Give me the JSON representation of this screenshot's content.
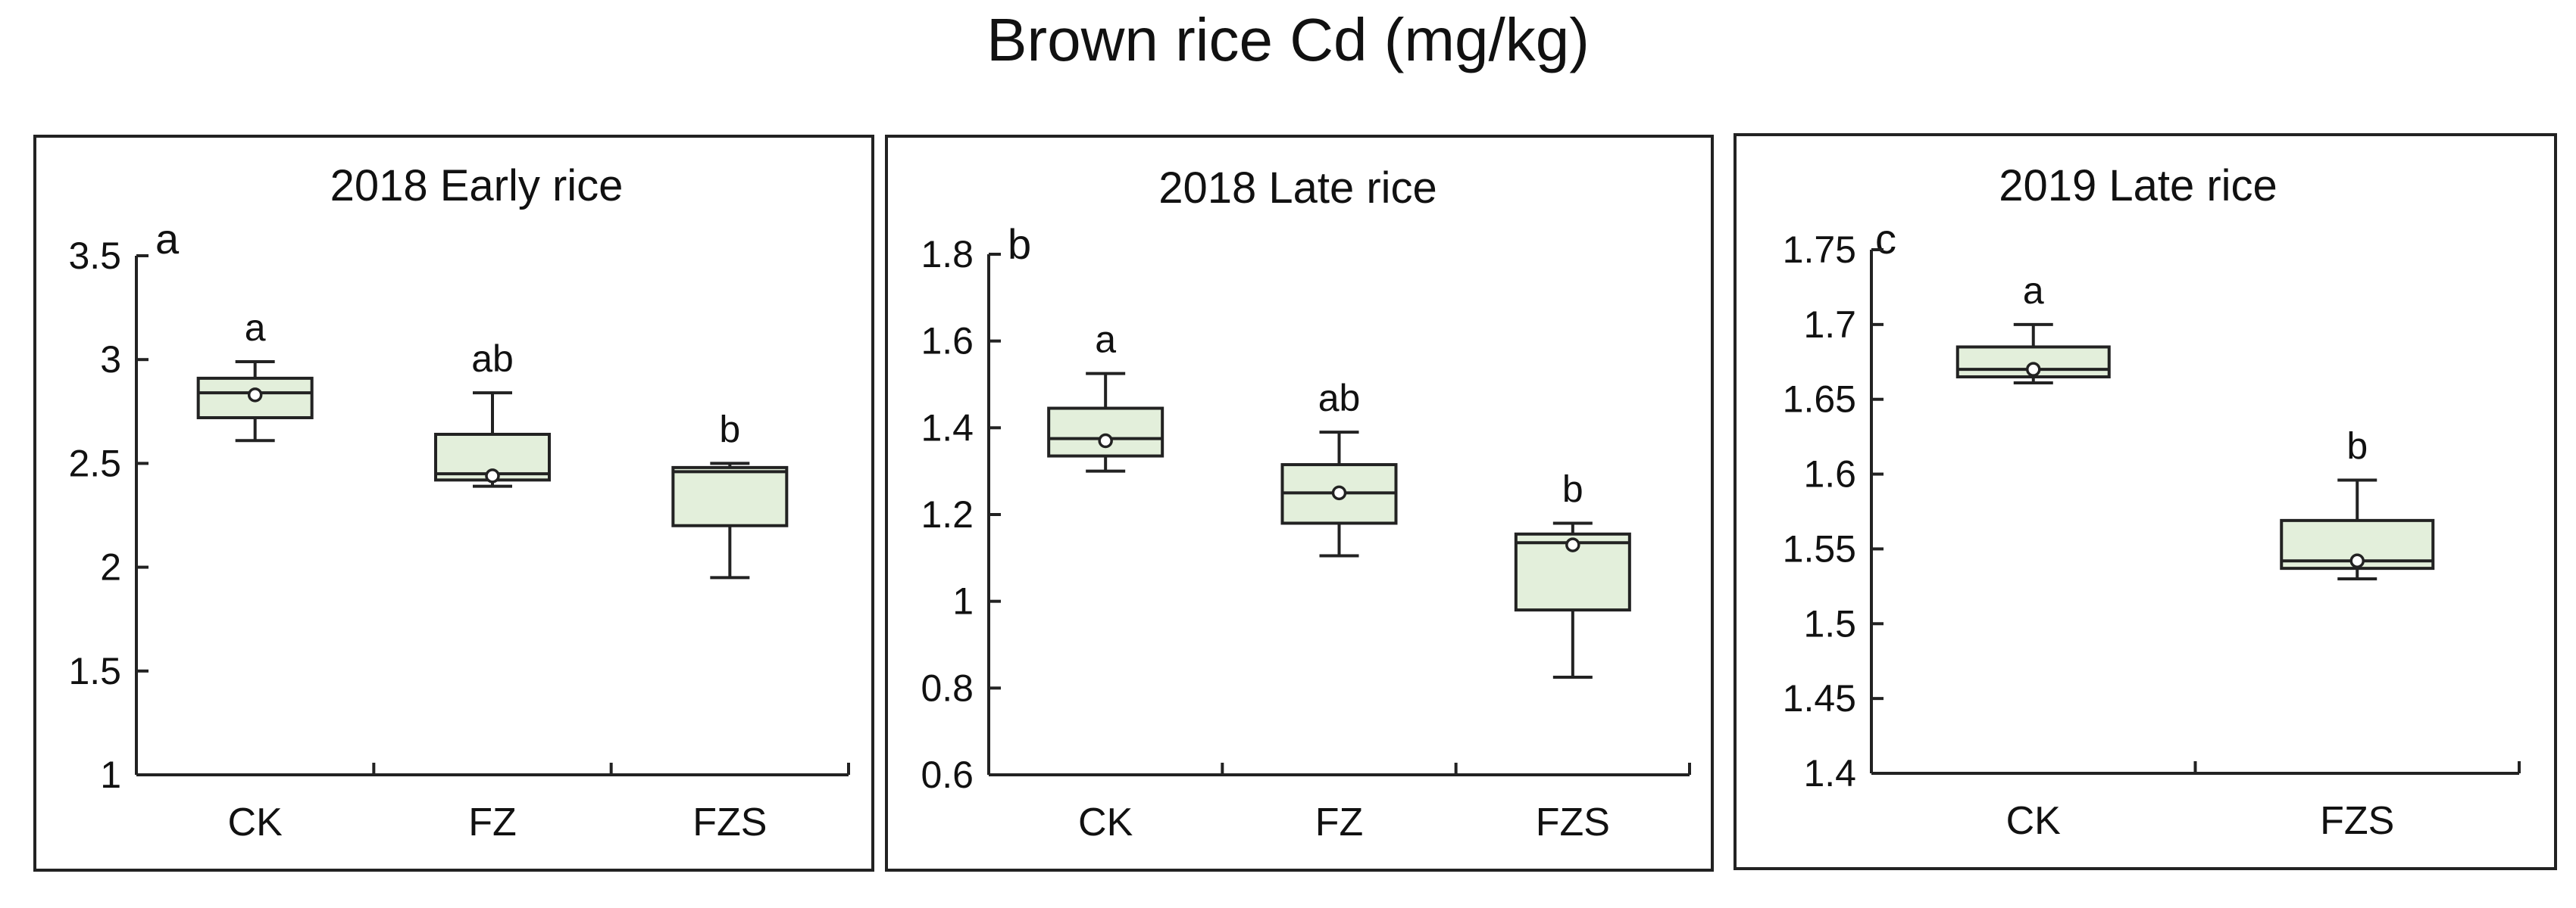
{
  "figure_title": "Brown rice Cd (mg/kg)",
  "chart_data": [
    {
      "type": "box",
      "panel_letter": "a",
      "title": "2018 Early rice",
      "xlabel": "",
      "ylabel": "",
      "ylim": [
        1,
        3.5
      ],
      "yticks": [
        "1",
        "1.5",
        "2",
        "2.5",
        "3",
        "3.5"
      ],
      "categories": [
        "CK",
        "FZ",
        "FZS"
      ],
      "boxes": [
        {
          "min": 2.61,
          "q1": 2.72,
          "median": 2.84,
          "q3": 2.91,
          "max": 2.99,
          "mean": 2.83,
          "sig": "a"
        },
        {
          "min": 2.39,
          "q1": 2.42,
          "median": 2.45,
          "q3": 2.64,
          "max": 2.84,
          "mean": 2.44,
          "sig": "ab"
        },
        {
          "min": 1.95,
          "q1": 2.2,
          "median": 2.46,
          "q3": 2.48,
          "max": 2.5,
          "mean": null,
          "sig": "b"
        }
      ]
    },
    {
      "type": "box",
      "panel_letter": "b",
      "title": "2018 Late rice",
      "xlabel": "",
      "ylabel": "",
      "ylim": [
        0.6,
        1.8
      ],
      "yticks": [
        "0.6",
        "0.8",
        "1",
        "1.2",
        "1.4",
        "1.6",
        "1.8"
      ],
      "categories": [
        "CK",
        "FZ",
        "FZS"
      ],
      "boxes": [
        {
          "min": 1.3,
          "q1": 1.335,
          "median": 1.375,
          "q3": 1.445,
          "max": 1.525,
          "mean": 1.37,
          "sig": "a"
        },
        {
          "min": 1.105,
          "q1": 1.18,
          "median": 1.25,
          "q3": 1.315,
          "max": 1.39,
          "mean": 1.25,
          "sig": "ab"
        },
        {
          "min": 0.825,
          "q1": 0.98,
          "median": 1.135,
          "q3": 1.155,
          "max": 1.18,
          "mean": 1.13,
          "sig": "b"
        }
      ]
    },
    {
      "type": "box",
      "panel_letter": "c",
      "title": "2019 Late rice",
      "xlabel": "",
      "ylabel": "",
      "ylim": [
        1.4,
        1.75
      ],
      "yticks": [
        "1.4",
        "1.45",
        "1.5",
        "1.55",
        "1.6",
        "1.65",
        "1.7",
        "1.75"
      ],
      "categories": [
        "CK",
        "FZS"
      ],
      "boxes": [
        {
          "min": 1.661,
          "q1": 1.665,
          "median": 1.67,
          "q3": 1.685,
          "max": 1.7,
          "mean": 1.67,
          "sig": "a"
        },
        {
          "min": 1.53,
          "q1": 1.537,
          "median": 1.542,
          "q3": 1.569,
          "max": 1.596,
          "mean": 1.542,
          "sig": "b"
        }
      ]
    }
  ]
}
